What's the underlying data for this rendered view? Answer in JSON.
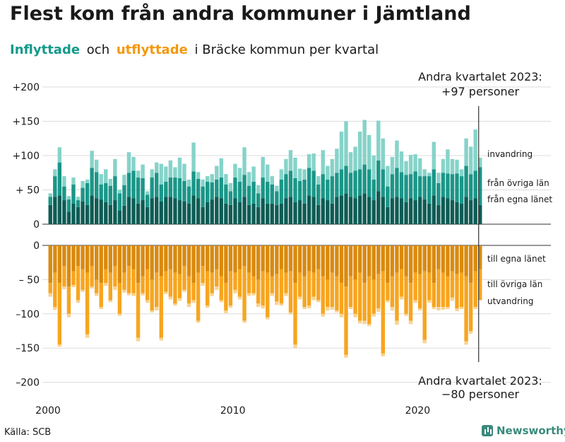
{
  "title": "Flest kom från andra kommuner i Jämtland",
  "subtitle": {
    "in_label": "Inflyttade",
    "and_word": "och",
    "out_label": "utflyttade",
    "rest": "i Bräcke  kommun  per  kvartal"
  },
  "source": "Källa: SCB",
  "brand": "Newsworthy",
  "colors": {
    "in_local": "#0e5c55",
    "in_county": "#1a9688",
    "in_other": "#86d3c9",
    "out_local": "#d98a0f",
    "out_other": "#f7a51f",
    "out_emig": "#f9d391",
    "grid": "#dcdcdc",
    "title": "#1a1a1a"
  },
  "chart_data": {
    "type": "bar",
    "stacked": true,
    "x_start": 2000,
    "x_end": 2023.5,
    "x_ticks": [
      2000,
      2010,
      2020
    ],
    "top_panel": {
      "ylim": [
        0,
        200
      ],
      "tick_values": [
        0,
        50,
        100,
        150,
        200
      ],
      "tick_labels": [
        "0",
        "+ 50",
        "+100",
        "+150",
        "+200"
      ],
      "series_names": [
        "från egna länet",
        "från övriga län",
        "invandring"
      ],
      "annotation_title": "Andra kvartalet 2023:",
      "annotation_value": "+97 personer"
    },
    "bottom_panel": {
      "ylim": [
        -200,
        0
      ],
      "tick_values": [
        0,
        -50,
        -100,
        -150,
        -200
      ],
      "tick_labels": [
        "0",
        "– 50",
        "–100",
        "–150",
        "–200"
      ],
      "series_names": [
        "till egna länet",
        "till övriga län",
        "utvandring"
      ],
      "annotation_title": "Andra kvartalet 2023:",
      "annotation_value": "−80 personer"
    },
    "quarters": [
      "2000Q1",
      "2000Q2",
      "2000Q3",
      "2000Q4",
      "2001Q1",
      "2001Q2",
      "2001Q3",
      "2001Q4",
      "2002Q1",
      "2002Q2",
      "2002Q3",
      "2002Q4",
      "2003Q1",
      "2003Q2",
      "2003Q3",
      "2003Q4",
      "2004Q1",
      "2004Q2",
      "2004Q3",
      "2004Q4",
      "2005Q1",
      "2005Q2",
      "2005Q3",
      "2005Q4",
      "2006Q1",
      "2006Q2",
      "2006Q3",
      "2006Q4",
      "2007Q1",
      "2007Q2",
      "2007Q3",
      "2007Q4",
      "2008Q1",
      "2008Q2",
      "2008Q3",
      "2008Q4",
      "2009Q1",
      "2009Q2",
      "2009Q3",
      "2009Q4",
      "2010Q1",
      "2010Q2",
      "2010Q3",
      "2010Q4",
      "2011Q1",
      "2011Q2",
      "2011Q3",
      "2011Q4",
      "2012Q1",
      "2012Q2",
      "2012Q3",
      "2012Q4",
      "2013Q1",
      "2013Q2",
      "2013Q3",
      "2013Q4",
      "2014Q1",
      "2014Q2",
      "2014Q3",
      "2014Q4",
      "2015Q1",
      "2015Q2",
      "2015Q3",
      "2015Q4",
      "2016Q1",
      "2016Q2",
      "2016Q3",
      "2016Q4",
      "2017Q1",
      "2017Q2",
      "2017Q3",
      "2017Q4",
      "2018Q1",
      "2018Q2",
      "2018Q3",
      "2018Q4",
      "2019Q1",
      "2019Q2",
      "2019Q3",
      "2019Q4",
      "2020Q1",
      "2020Q2",
      "2020Q3",
      "2020Q4",
      "2021Q1",
      "2021Q2",
      "2021Q3",
      "2021Q4",
      "2022Q1",
      "2022Q2",
      "2022Q3",
      "2022Q4",
      "2023Q1",
      "2023Q2"
    ],
    "in_local": [
      28,
      40,
      42,
      35,
      18,
      30,
      25,
      33,
      28,
      42,
      38,
      36,
      32,
      28,
      35,
      20,
      27,
      40,
      38,
      30,
      35,
      25,
      38,
      40,
      33,
      40,
      40,
      38,
      35,
      33,
      30,
      42,
      38,
      25,
      32,
      36,
      40,
      38,
      30,
      28,
      38,
      32,
      40,
      28,
      30,
      25,
      38,
      30,
      30,
      28,
      30,
      38,
      40,
      32,
      35,
      30,
      42,
      40,
      28,
      38,
      35,
      30,
      40,
      42,
      45,
      40,
      38,
      42,
      45,
      40,
      35,
      48,
      40,
      25,
      38,
      40,
      38,
      32,
      38,
      35,
      40,
      36,
      30,
      42,
      28,
      40,
      38,
      35,
      32,
      30,
      40,
      35,
      38,
      28
    ],
    "in_county": [
      12,
      30,
      48,
      20,
      18,
      28,
      10,
      20,
      32,
      40,
      38,
      22,
      28,
      28,
      35,
      25,
      30,
      35,
      40,
      38,
      32,
      18,
      30,
      35,
      25,
      22,
      28,
      30,
      32,
      30,
      25,
      35,
      28,
      30,
      30,
      25,
      25,
      30,
      28,
      20,
      30,
      30,
      32,
      28,
      32,
      20,
      30,
      32,
      28,
      20,
      35,
      35,
      38,
      35,
      28,
      35,
      40,
      38,
      30,
      35,
      30,
      40,
      35,
      38,
      40,
      35,
      40,
      38,
      42,
      40,
      30,
      45,
      40,
      30,
      35,
      42,
      38,
      40,
      35,
      42,
      30,
      34,
      40,
      38,
      32,
      35,
      36,
      38,
      42,
      40,
      45,
      38,
      40,
      55
    ],
    "in_other": [
      5,
      10,
      22,
      15,
      5,
      10,
      5,
      10,
      5,
      25,
      18,
      15,
      20,
      10,
      25,
      5,
      15,
      30,
      20,
      10,
      20,
      5,
      12,
      15,
      30,
      22,
      25,
      15,
      30,
      25,
      10,
      42,
      10,
      10,
      8,
      12,
      20,
      28,
      15,
      12,
      20,
      20,
      40,
      20,
      22,
      12,
      30,
      25,
      12,
      8,
      15,
      22,
      30,
      30,
      18,
      15,
      20,
      25,
      12,
      35,
      20,
      25,
      35,
      55,
      65,
      30,
      35,
      55,
      65,
      50,
      35,
      58,
      45,
      30,
      25,
      40,
      30,
      20,
      28,
      25,
      26,
      10,
      5,
      40,
      15,
      20,
      35,
      22,
      20,
      10,
      40,
      40,
      60,
      14
    ],
    "out_local": [
      -55,
      -40,
      -55,
      -30,
      -60,
      -38,
      -30,
      -35,
      -40,
      -30,
      -50,
      -55,
      -35,
      -40,
      -30,
      -55,
      -40,
      -30,
      -35,
      -55,
      -45,
      -35,
      -50,
      -40,
      -45,
      -38,
      -35,
      -40,
      -42,
      -30,
      -45,
      -55,
      -40,
      -30,
      -38,
      -40,
      -35,
      -45,
      -55,
      -38,
      -40,
      -35,
      -30,
      -40,
      -45,
      -50,
      -38,
      -40,
      -45,
      -42,
      -35,
      -40,
      -38,
      -55,
      -40,
      -45,
      -38,
      -40,
      -35,
      -45,
      -50,
      -40,
      -45,
      -55,
      -60,
      -45,
      -50,
      -40,
      -55,
      -45,
      -50,
      -42,
      -38,
      -55,
      -45,
      -40,
      -35,
      -45,
      -55,
      -40,
      -42,
      -38,
      -40,
      -55,
      -35,
      -40,
      -45,
      -38,
      -42,
      -40,
      -45,
      -55,
      -38,
      -35
    ],
    "out_other": [
      -15,
      -50,
      -90,
      -30,
      -40,
      -20,
      -50,
      -30,
      -90,
      -30,
      -20,
      -35,
      -20,
      -40,
      -30,
      -45,
      -25,
      -40,
      -35,
      -80,
      -25,
      -45,
      -45,
      -50,
      -90,
      -30,
      -40,
      -45,
      -35,
      -35,
      -40,
      -25,
      -70,
      -25,
      -50,
      -30,
      -25,
      -35,
      -40,
      -50,
      -25,
      -40,
      -80,
      -30,
      -25,
      -35,
      -50,
      -65,
      -25,
      -40,
      -50,
      -30,
      -60,
      -90,
      -35,
      -45,
      -50,
      -35,
      -45,
      -55,
      -40,
      -50,
      -50,
      -45,
      -100,
      -45,
      -50,
      -70,
      -55,
      -70,
      -50,
      -50,
      -120,
      -25,
      -45,
      -70,
      -40,
      -55,
      -55,
      -40,
      -50,
      -100,
      -40,
      -35,
      -55,
      -50,
      -45,
      -38,
      -50,
      -50,
      -95,
      -70,
      -52,
      -45
    ],
    "out_emig": [
      -5,
      -4,
      -3,
      -4,
      -5,
      -3,
      -4,
      -3,
      -5,
      -3,
      -4,
      -3,
      -4,
      -3,
      -5,
      -3,
      -4,
      -3,
      -4,
      -5,
      -3,
      -4,
      -3,
      -5,
      -4,
      -3,
      -4,
      -3,
      -4,
      -3,
      -5,
      -4,
      -3,
      -4,
      -3,
      -4,
      -5,
      -3,
      -4,
      -3,
      -5,
      -4,
      -3,
      -4,
      -3,
      -5,
      -4,
      -3,
      -4,
      -5,
      -3,
      -4,
      -3,
      -5,
      -4,
      -3,
      -4,
      -5,
      -3,
      -4,
      -5,
      -4,
      -3,
      -5,
      -4,
      -3,
      -5,
      -4,
      -5,
      -3,
      -4,
      -5,
      -4,
      -3,
      -5,
      -6,
      -4,
      -3,
      -5,
      -4,
      -3,
      -5,
      -4,
      -3,
      -5,
      -4,
      -3,
      -5,
      -4,
      -3,
      -5,
      -4,
      -3,
      0
    ]
  }
}
